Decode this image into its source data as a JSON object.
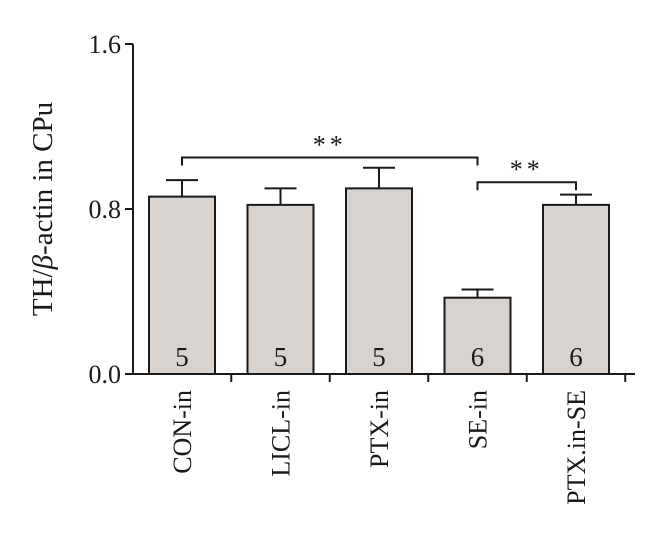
{
  "chart_data": {
    "type": "bar",
    "ylabel_prefix": "TH/",
    "ylabel_symbol": "β",
    "ylabel_suffix": "-actin in CPu",
    "categories": [
      "CON-in",
      "LICL-in",
      "PTX-in",
      "SE-in",
      "PTX.in-SE"
    ],
    "values": [
      0.86,
      0.82,
      0.9,
      0.37,
      0.82
    ],
    "errors": [
      0.08,
      0.08,
      0.1,
      0.04,
      0.05
    ],
    "n_labels": [
      "5",
      "5",
      "5",
      "6",
      "6"
    ],
    "ylim": [
      0.0,
      1.6
    ],
    "yticks": [
      0.0,
      0.8,
      1.6
    ],
    "ytick_labels": [
      "0.0",
      "0.8",
      "1.6"
    ],
    "bar_color": "#d9d3cf",
    "edge_color": "#1a1a1a",
    "grid": false,
    "legend": "none",
    "significance": [
      {
        "from": 0,
        "to": 3,
        "label": "**",
        "y": 1.05
      },
      {
        "from": 3,
        "to": 4,
        "label": "**",
        "y": 0.93
      }
    ]
  }
}
